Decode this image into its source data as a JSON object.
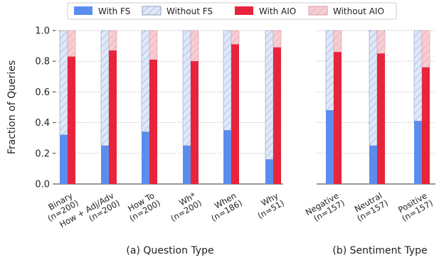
{
  "colors": {
    "with_fs": "#5b8def",
    "without_fs": "#dfe8fb",
    "without_fs_hatch": "#8fa0b6",
    "with_aio": "#e8243c",
    "without_aio": "#f7cdd3",
    "without_aio_hatch": "#d99aa3"
  },
  "legend": {
    "items": [
      {
        "key": "with_fs",
        "label": "With FS"
      },
      {
        "key": "without_fs",
        "label": "Without FS"
      },
      {
        "key": "with_aio",
        "label": "With AIO"
      },
      {
        "key": "without_aio",
        "label": "Without AIO"
      }
    ]
  },
  "chart_data": [
    {
      "type": "bar",
      "title": "(a) Question Type",
      "ylabel": "Fraction of Queries",
      "ylim": [
        0,
        1.0
      ],
      "yticks": [
        "0.0",
        "0.2",
        "0.4",
        "0.6",
        "0.8",
        "1.0"
      ],
      "grid": true,
      "legend_placement": "top",
      "categories": [
        {
          "line1": "Binary",
          "line2": "(n=200)"
        },
        {
          "line1": "How + Adj/Adv",
          "line2": "(n=200)"
        },
        {
          "line1": "How To",
          "line2": "(n=200)"
        },
        {
          "line1": "Wh*",
          "line2": "(n=200)"
        },
        {
          "line1": "When",
          "line2": "(n=186)"
        },
        {
          "line1": "Why",
          "line2": "(n=51)"
        }
      ],
      "series": [
        {
          "name": "With FS",
          "values": [
            0.32,
            0.25,
            0.34,
            0.25,
            0.35,
            0.16
          ]
        },
        {
          "name": "With AIO",
          "values": [
            0.83,
            0.87,
            0.81,
            0.8,
            0.91,
            0.89
          ]
        }
      ]
    },
    {
      "type": "bar",
      "title": "(b) Sentiment Type",
      "ylim": [
        0,
        1.0
      ],
      "grid": true,
      "categories": [
        {
          "line1": "Negative",
          "line2": "(n=157)"
        },
        {
          "line1": "Neutral",
          "line2": "(n=157)"
        },
        {
          "line1": "Positive",
          "line2": "(n=157)"
        }
      ],
      "series": [
        {
          "name": "With FS",
          "values": [
            0.48,
            0.25,
            0.41
          ]
        },
        {
          "name": "With AIO",
          "values": [
            0.86,
            0.85,
            0.76
          ]
        }
      ]
    }
  ]
}
